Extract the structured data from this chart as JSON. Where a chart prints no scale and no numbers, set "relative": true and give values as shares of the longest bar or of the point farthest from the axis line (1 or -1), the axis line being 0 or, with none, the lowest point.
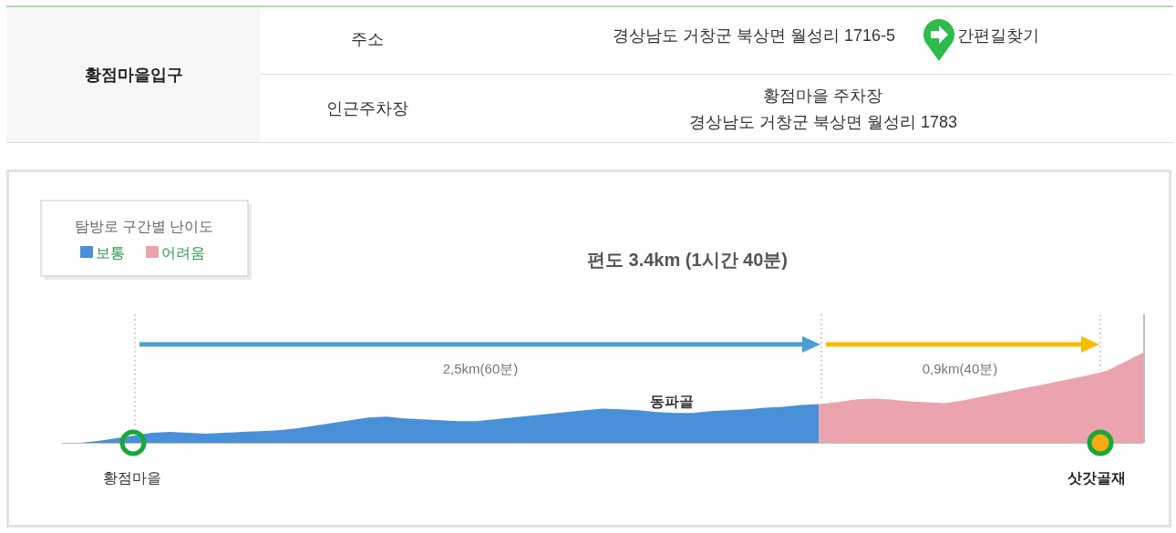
{
  "chart_data": [
    {
      "type": "other",
      "title": "황점마을입구",
      "annotations": [
        "주소",
        "경상남도 거창군 북상면 월성리 1716-5",
        "간편길찾기",
        "인근주차장",
        "황점마을 주차장",
        "경상남도 거창군 북상면 월성리 1783"
      ]
    },
    {
      "type": "area",
      "relative": true,
      "title": "편도 3.4km (1시간 40분)",
      "legend_title": "탐방로 구간별 난이도",
      "legend": "top left",
      "categories": [
        null,
        null,
        null,
        null,
        null,
        null,
        null,
        null,
        null,
        null,
        null,
        null,
        null,
        null,
        null,
        null,
        null,
        null,
        null,
        null,
        null,
        null,
        null,
        null,
        null,
        null,
        null,
        null,
        null,
        null,
        null,
        null,
        null,
        null,
        null,
        null,
        null,
        null,
        null,
        null,
        null,
        null,
        null,
        null,
        null,
        null,
        null,
        null,
        null,
        null,
        null,
        null,
        null,
        null,
        null,
        null,
        null,
        null,
        null,
        null,
        null
      ],
      "series": [
        {
          "name": "보통",
          "color": "#4a90d9",
          "values": [
            0,
            0,
            0.02,
            0.05,
            0.08,
            0.11,
            0.12,
            0.11,
            0.1,
            0.11,
            0.12,
            0.13,
            0.14,
            0.16,
            0.19,
            0.22,
            0.25,
            0.28,
            0.29,
            0.27,
            0.26,
            0.25,
            0.24,
            0.24,
            0.26,
            0.28,
            0.3,
            0.32,
            0.34,
            0.36,
            0.38,
            0.37,
            0.36,
            0.34,
            0.33,
            0.33,
            0.35,
            0.36,
            0.37,
            0.39,
            0.4,
            0.42,
            0.43,
            null,
            null,
            null,
            null,
            null,
            null,
            null,
            null,
            null,
            null,
            null,
            null,
            null,
            null,
            null,
            null,
            null,
            null
          ]
        },
        {
          "name": "어려움",
          "color": "#eba3ad",
          "values": [
            null,
            null,
            null,
            null,
            null,
            null,
            null,
            null,
            null,
            null,
            null,
            null,
            null,
            null,
            null,
            null,
            null,
            null,
            null,
            null,
            null,
            null,
            null,
            null,
            null,
            null,
            null,
            null,
            null,
            null,
            null,
            null,
            null,
            null,
            null,
            null,
            null,
            null,
            null,
            null,
            null,
            null,
            0.43,
            0.45,
            0.48,
            0.49,
            0.48,
            0.46,
            0.45,
            0.44,
            0.47,
            0.51,
            0.55,
            0.59,
            0.63,
            0.67,
            0.71,
            0.75,
            0.8,
            0.9,
            1
          ]
        }
      ],
      "annotations": [
        "2,5km(60분)",
        "0,9km(40분)",
        "황점마을",
        "동파골",
        "삿갓골재"
      ]
    }
  ]
}
